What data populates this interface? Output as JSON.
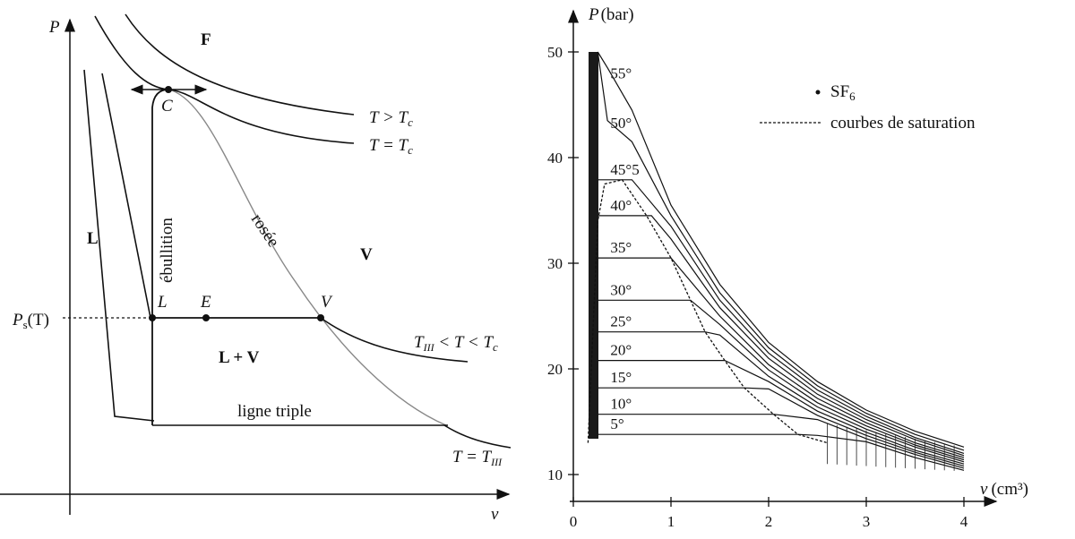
{
  "left_diagram": {
    "axis_y": "P",
    "axis_x": "v",
    "ps_label": "P",
    "ps_sub": "s",
    "ps_tail": "(T)",
    "region_F": "F",
    "region_L": "L",
    "region_V": "V",
    "region_LV": "L + V",
    "point_C": "C",
    "point_L": "L",
    "point_E": "E",
    "point_V": "V",
    "ebullition": "ébullition",
    "rosee": "rosée",
    "ligne_triple": "ligne triple",
    "iso_gt_T": "T > T",
    "iso_gt_sub": "c",
    "iso_eq_T": "T = T",
    "iso_eq_sub": "c",
    "iso_mid_a": "T",
    "iso_mid_sub1": "III",
    "iso_mid_b": " < T < T",
    "iso_mid_sub2": "c",
    "iso_III_T": "T = T",
    "iso_III_sub": "III"
  },
  "right_chart": {
    "ylabel_P": "P",
    "ylabel_unit": "(bar)",
    "xlabel_v": "v",
    "xlabel_unit": "(cm³)",
    "legend_sf6": "SF",
    "legend_sf6_sub": "6",
    "legend_sat": "courbes de saturation",
    "y_ticks": [
      "10",
      "20",
      "30",
      "40",
      "50"
    ],
    "x_ticks": [
      "0",
      "1",
      "2",
      "3",
      "4"
    ],
    "iso_labels": [
      "55°",
      "50°",
      "45°5",
      "40°",
      "35°",
      "30°",
      "25°",
      "20°",
      "15°",
      "10°",
      "5°"
    ]
  },
  "chart_data": {
    "type": "line",
    "title": "",
    "xlabel": "v (cm³)",
    "ylabel": "P (bar)",
    "xlim": [
      0,
      4
    ],
    "ylim": [
      10,
      50
    ],
    "series": [
      {
        "name": "55°",
        "plateau": null,
        "v_high": [
          0.35,
          0.6,
          1.0,
          1.5,
          2.0,
          2.5,
          3.0,
          3.5,
          4.0
        ],
        "p_high": [
          48.5,
          44.5,
          35.5,
          28.0,
          22.5,
          18.8,
          16.1,
          14.1,
          12.6
        ]
      },
      {
        "name": "50°",
        "plateau": null,
        "v_high": [
          0.35,
          0.6,
          1.0,
          1.5,
          2.0,
          2.5,
          3.0,
          3.5,
          4.0
        ],
        "p_high": [
          43.5,
          41.5,
          34.5,
          27.2,
          22.0,
          18.4,
          15.8,
          13.8,
          12.3
        ]
      },
      {
        "name": "45°5",
        "plateau": 37.9,
        "v_high": [
          0.6,
          1.0,
          1.5,
          2.0,
          2.5,
          3.0,
          3.5,
          4.0
        ],
        "p_high": [
          37.9,
          33.5,
          26.5,
          21.5,
          18.0,
          15.5,
          13.5,
          12.0
        ]
      },
      {
        "name": "40°",
        "plateau": 34.5,
        "v_high": [
          0.8,
          1.0,
          1.5,
          2.0,
          2.5,
          3.0,
          3.5,
          4.0
        ],
        "p_high": [
          34.5,
          32.3,
          25.8,
          21.0,
          17.6,
          15.2,
          13.3,
          11.8
        ]
      },
      {
        "name": "35°",
        "plateau": 30.5,
        "v_high": [
          1.0,
          1.5,
          2.0,
          2.5,
          3.0,
          3.5,
          4.0
        ],
        "p_high": [
          30.5,
          25.0,
          20.4,
          17.2,
          14.9,
          13.0,
          11.6
        ]
      },
      {
        "name": "30°",
        "plateau": 26.5,
        "v_high": [
          1.2,
          1.5,
          2.0,
          2.5,
          3.0,
          3.5,
          4.0
        ],
        "p_high": [
          26.5,
          24.2,
          19.9,
          16.8,
          14.6,
          12.8,
          11.4
        ]
      },
      {
        "name": "25°",
        "plateau": 23.5,
        "v_high": [
          1.35,
          1.5,
          2.0,
          2.5,
          3.0,
          3.5,
          4.0
        ],
        "p_high": [
          23.5,
          23.2,
          19.3,
          16.4,
          14.3,
          12.6,
          11.2
        ]
      },
      {
        "name": "20°",
        "plateau": 20.8,
        "v_high": [
          1.55,
          2.0,
          2.5,
          3.0,
          3.5,
          4.0
        ],
        "p_high": [
          20.8,
          18.8,
          16.0,
          14.0,
          12.3,
          11.0
        ]
      },
      {
        "name": "15°",
        "plateau": 18.2,
        "v_high": [
          1.75,
          2.0,
          2.5,
          3.0,
          3.5,
          4.0
        ],
        "p_high": [
          18.2,
          18.1,
          15.6,
          13.7,
          12.1,
          10.8
        ]
      },
      {
        "name": "10°",
        "plateau": 15.7,
        "v_high": [
          2.05,
          2.5,
          3.0,
          3.5,
          4.0
        ],
        "p_high": [
          15.7,
          15.2,
          13.4,
          11.9,
          10.6
        ]
      },
      {
        "name": "5°",
        "plateau": 13.8,
        "v_high": [
          2.3,
          2.5,
          3.0,
          3.5,
          4.0
        ],
        "p_high": [
          13.8,
          13.7,
          13.1,
          11.6,
          10.4
        ]
      }
    ],
    "saturation_curve": {
      "name": "courbes de saturation",
      "v": [
        0.15,
        0.25,
        0.32,
        0.5,
        0.75,
        1.0,
        1.2,
        1.35,
        1.55,
        1.75,
        2.05,
        2.3,
        2.6
      ],
      "p": [
        13.0,
        34.0,
        37.5,
        37.9,
        34.5,
        30.5,
        26.5,
        23.5,
        20.8,
        18.2,
        15.7,
        13.8,
        13.0
      ]
    },
    "grid": false,
    "legend": "top-right"
  }
}
